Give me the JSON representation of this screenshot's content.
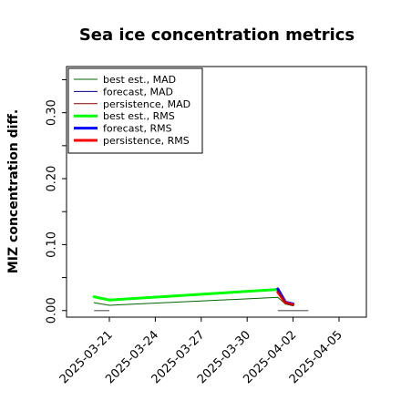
{
  "chart_data": {
    "type": "line",
    "title": "Sea ice concentration metrics",
    "xlabel": "",
    "ylabel": "MIZ concentration diff.",
    "ylim": [
      -0.01,
      0.37
    ],
    "yticks": [
      "0.00",
      "0.10",
      "0.20",
      "0.30"
    ],
    "xticks": [
      "2025-03-21",
      "2025-03-24",
      "2025-03-27",
      "2025-03-30",
      "2025-04-02",
      "2025-04-05"
    ],
    "highlight_tick": "2025-03-27",
    "highlight_color": "#228b22",
    "legend_position": "upper left",
    "series": [
      {
        "name": "best est., MAD",
        "color": "#006400",
        "width": 1,
        "points": [
          [
            "2025-03-20",
            0.012
          ],
          [
            "2025-03-21",
            0.008
          ],
          [
            "2025-04-01",
            0.02
          ],
          [
            "2025-04-01.5",
            0.01
          ],
          [
            "2025-04-02",
            0.007
          ]
        ]
      },
      {
        "name": "forecast,  MAD",
        "color": "#00008b",
        "width": 1,
        "points": [
          [
            "2025-04-01",
            0.026
          ],
          [
            "2025-04-01.5",
            0.011
          ],
          [
            "2025-04-02",
            0.008
          ]
        ]
      },
      {
        "name": "persistence, MAD",
        "color": "#8b0000",
        "width": 1,
        "points": [
          [
            "2025-04-01",
            0.03
          ],
          [
            "2025-04-01.5",
            0.012
          ],
          [
            "2025-04-02",
            0.008
          ]
        ]
      },
      {
        "name": "best est., RMS",
        "color": "#00ff00",
        "width": 3,
        "points": [
          [
            "2025-03-20",
            0.021
          ],
          [
            "2025-03-21",
            0.016
          ],
          [
            "2025-04-01",
            0.032
          ],
          [
            "2025-04-01.5",
            0.011
          ],
          [
            "2025-04-02",
            0.009
          ]
        ]
      },
      {
        "name": "forecast,  RMS",
        "color": "#0000ff",
        "width": 3,
        "points": [
          [
            "2025-04-01",
            0.033
          ],
          [
            "2025-04-01.5",
            0.013
          ],
          [
            "2025-04-02",
            0.01
          ]
        ]
      },
      {
        "name": "persistence, RMS",
        "color": "#ff0000",
        "width": 3,
        "points": [
          [
            "2025-04-01",
            0.028
          ],
          [
            "2025-04-01.5",
            0.012
          ],
          [
            "2025-04-02",
            0.009
          ]
        ]
      }
    ],
    "baseline_marks": [
      {
        "from": "2025-03-20",
        "to": "2025-03-21",
        "value": 0.0,
        "color": "#808080"
      },
      {
        "from": "2025-04-01",
        "to": "2025-04-03",
        "value": 0.0,
        "color": "#808080"
      }
    ]
  }
}
